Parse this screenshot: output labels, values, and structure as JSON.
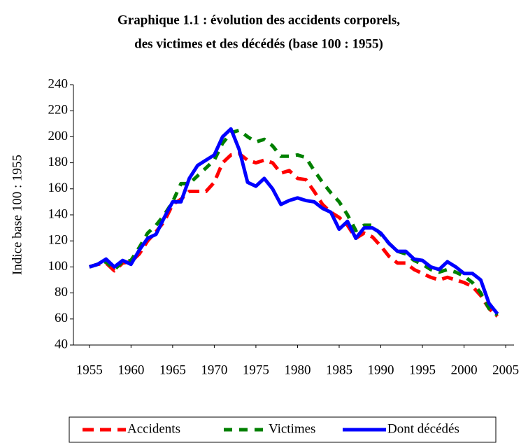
{
  "chart_data": {
    "type": "line",
    "title": [
      "Graphique 1.1 : évolution des accidents corporels,",
      "des victimes et des décédés   (base 100 : 1955)"
    ],
    "y_label": "Indice base 100 : 1955",
    "x": [
      1955,
      1956,
      1957,
      1958,
      1959,
      1960,
      1961,
      1962,
      1963,
      1964,
      1965,
      1966,
      1967,
      1968,
      1969,
      1970,
      1971,
      1972,
      1973,
      1974,
      1975,
      1976,
      1977,
      1978,
      1979,
      1980,
      1981,
      1982,
      1983,
      1984,
      1985,
      1986,
      1987,
      1988,
      1989,
      1990,
      1991,
      1992,
      1993,
      1994,
      1995,
      1996,
      1997,
      1998,
      1999,
      2000,
      2001,
      2002,
      2003,
      2004
    ],
    "series": [
      {
        "name": "Accidents",
        "color": "#ff0000",
        "dash": "16 9",
        "values": [
          100,
          102,
          103,
          97,
          103,
          104,
          110,
          120,
          127,
          135,
          148,
          152,
          158,
          158,
          158,
          165,
          180,
          186,
          187,
          182,
          180,
          182,
          180,
          172,
          174,
          168,
          167,
          158,
          148,
          142,
          138,
          132,
          122,
          126,
          123,
          116,
          108,
          103,
          103,
          98,
          95,
          92,
          90,
          92,
          90,
          88,
          85,
          78,
          68,
          62
        ]
      },
      {
        "name": "Victimes",
        "color": "#008000",
        "dash": "12 10",
        "values": [
          100,
          102,
          104,
          98,
          104,
          105,
          115,
          126,
          132,
          140,
          150,
          164,
          164,
          170,
          176,
          182,
          195,
          203,
          205,
          200,
          196,
          198,
          193,
          185,
          185,
          186,
          184,
          174,
          165,
          157,
          150,
          140,
          128,
          132,
          132,
          125,
          118,
          112,
          110,
          105,
          102,
          98,
          96,
          98,
          96,
          93,
          88,
          80,
          68,
          63
        ]
      },
      {
        "name": "Dont décédés",
        "color": "#0000ff",
        "dash": null,
        "values": [
          100,
          102,
          106,
          100,
          105,
          102,
          113,
          122,
          125,
          138,
          150,
          150,
          168,
          178,
          182,
          186,
          200,
          206,
          190,
          165,
          162,
          168,
          160,
          148,
          151,
          153,
          151,
          150,
          145,
          142,
          129,
          135,
          122,
          130,
          130,
          126,
          118,
          112,
          112,
          106,
          105,
          100,
          98,
          104,
          100,
          95,
          95,
          90,
          72,
          64
        ]
      }
    ],
    "xlim": [
      1953,
      2006
    ],
    "xticks": [
      1955,
      1960,
      1965,
      1970,
      1975,
      1980,
      1985,
      1990,
      1995,
      2000,
      2005
    ],
    "ylim": [
      40,
      240
    ],
    "yticks": [
      40,
      60,
      80,
      100,
      120,
      140,
      160,
      180,
      200,
      220,
      240
    ]
  }
}
